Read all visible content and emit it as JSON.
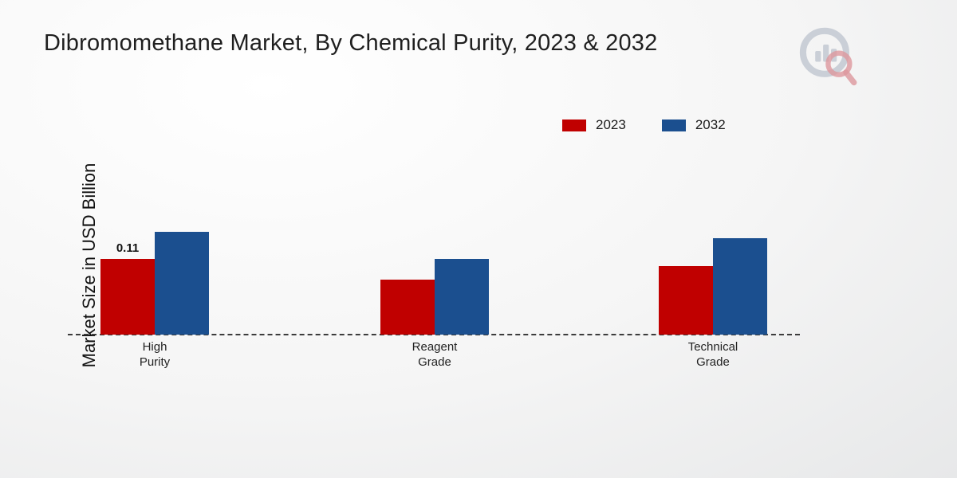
{
  "title": "Dibromomethane Market, By Chemical Purity, 2023 & 2032",
  "ylabel": "Market Size in USD Billion",
  "legend": [
    {
      "label": "2023",
      "color": "#c00000"
    },
    {
      "label": "2032",
      "color": "#1b4f8f"
    }
  ],
  "colors": {
    "series_2023": "#c00000",
    "series_2032": "#1b4f8f",
    "footer_red": "#c00000",
    "footer_dark_red": "#8b1414"
  },
  "chart_data": {
    "type": "bar",
    "title": "Dibromomethane Market, By Chemical Purity, 2023 & 2032",
    "ylabel": "Market Size in USD Billion",
    "categories": [
      "High\nPurity",
      "Reagent\nGrade",
      "Technical\nGrade"
    ],
    "series": [
      {
        "name": "2023",
        "color": "#c00000",
        "values": [
          0.11,
          0.08,
          0.1
        ]
      },
      {
        "name": "2032",
        "color": "#1b4f8f",
        "values": [
          0.15,
          0.11,
          0.14
        ]
      }
    ],
    "annotations": [
      {
        "series_index": 0,
        "category_index": 0,
        "text": "0.11"
      }
    ],
    "ylim": [
      0,
      0.18
    ],
    "baseline_style": "dashed",
    "grid": false,
    "legend_position": "top-right"
  }
}
